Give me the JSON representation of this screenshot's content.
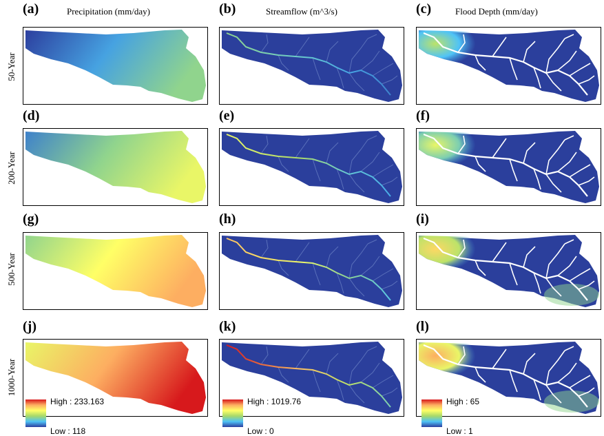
{
  "columns": [
    {
      "title": "Precipitation (mm/day)",
      "legend": {
        "high": "High : 233.163",
        "low": "Low : 118"
      }
    },
    {
      "title": "Streamflow (m^3/s)",
      "legend": {
        "high": "High : 1019.76",
        "low": "Low : 0"
      }
    },
    {
      "title": "Flood Depth (mm/day)",
      "legend": {
        "high": "High : 65",
        "low": "Low : 1"
      }
    }
  ],
  "rows": [
    {
      "label": "50-Year",
      "panels": [
        "(a)",
        "(b)",
        "(c)"
      ],
      "precip_level": 0.25,
      "flow_level": 0.35,
      "flood_level": 0.2
    },
    {
      "label": "200-Year",
      "panels": [
        "(d)",
        "(e)",
        "(f)"
      ],
      "precip_level": 0.45,
      "flow_level": 0.55,
      "flood_level": 0.3
    },
    {
      "label": "500-Year",
      "panels": [
        "(g)",
        "(h)",
        "(i)"
      ],
      "precip_level": 0.7,
      "flow_level": 0.75,
      "flood_level": 0.45
    },
    {
      "label": "1000-Year",
      "panels": [
        "(j)",
        "(k)",
        "(l)"
      ],
      "precip_level": 0.9,
      "flow_level": 1.0,
      "flood_level": 0.55
    }
  ],
  "colors": {
    "ramp": [
      "#d7191c",
      "#fdae61",
      "#ffff66",
      "#a6d96a",
      "#4fc3f7",
      "#2c3e9e"
    ],
    "basin_low": "#2b3f9c",
    "stream_white": "#ffffff"
  }
}
